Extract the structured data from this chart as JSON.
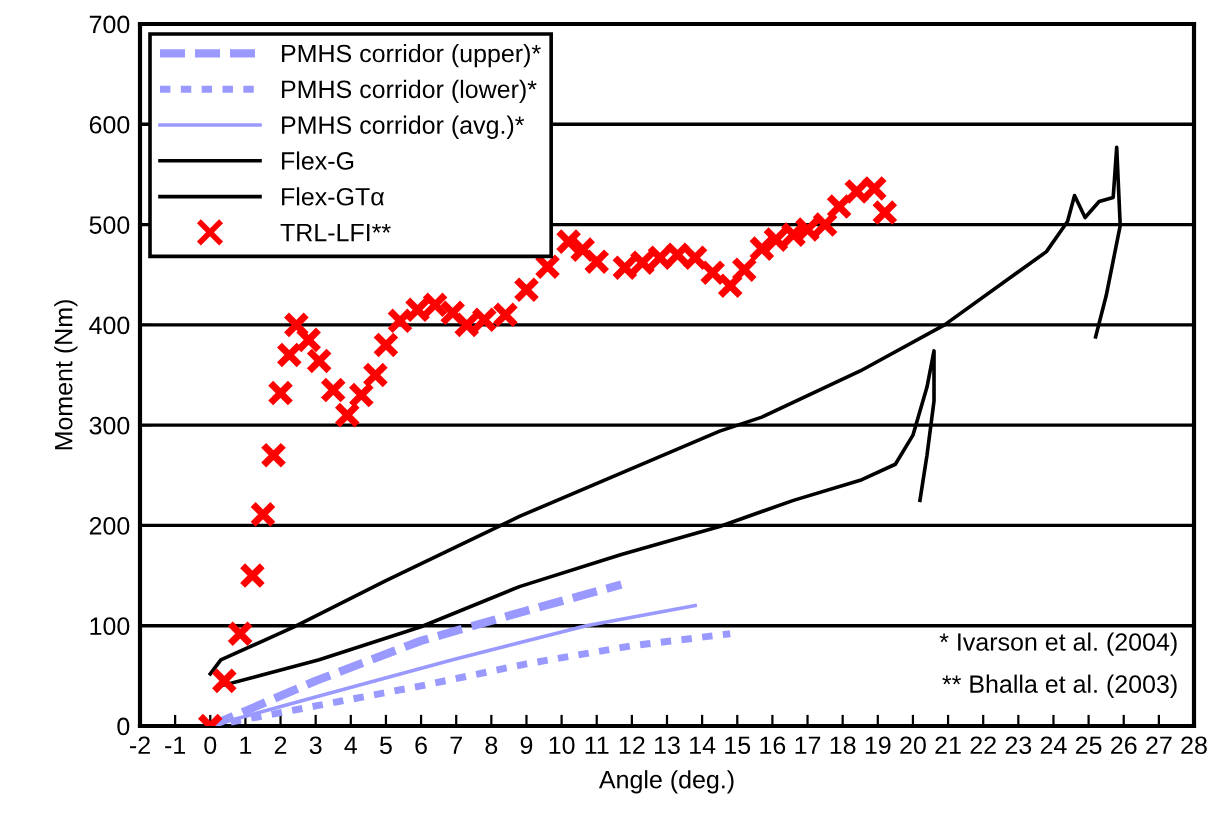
{
  "chart_data": {
    "type": "line",
    "xlabel": "Angle (deg.)",
    "ylabel": "Moment (Nm)",
    "xlim": [
      -2,
      28
    ],
    "xticks": [
      -2,
      -1,
      0,
      1,
      2,
      3,
      4,
      5,
      6,
      7,
      8,
      9,
      10,
      11,
      12,
      13,
      14,
      15,
      16,
      17,
      18,
      19,
      20,
      21,
      22,
      23,
      24,
      25,
      26,
      27,
      28
    ],
    "ylim": [
      0,
      700
    ],
    "yticks": [
      0,
      100,
      200,
      300,
      400,
      500,
      600,
      700
    ],
    "grid": "y",
    "legend": "top left",
    "annotations": [
      "* Ivarson et al. (2004)",
      "** Bhalla et al. (2003)"
    ],
    "series": [
      {
        "name": "PMHS corridor (upper)*",
        "color": "#9999ff",
        "line_style": "dashed",
        "marker": "none",
        "x": [
          0,
          3,
          6,
          9,
          11.7
        ],
        "values": [
          0,
          45,
          85,
          115,
          141
        ]
      },
      {
        "name": "PMHS corridor (lower)*",
        "color": "#9999ff",
        "line_style": "dotted",
        "marker": "none",
        "x": [
          0,
          3,
          6,
          9,
          12,
          14.8
        ],
        "values": [
          0,
          20,
          40,
          62,
          80,
          92
        ]
      },
      {
        "name": "PMHS corridor (avg.)*",
        "color": "#9999ff",
        "line_style": "solid",
        "marker": "none",
        "x": [
          0,
          3.1,
          6.9,
          10.7,
          13.8
        ],
        "values": [
          0,
          30,
          66,
          100,
          120
        ]
      },
      {
        "name": "Flex-G",
        "color": "#000000",
        "line_style": "solid",
        "marker": "none",
        "x": [
          0,
          0.3,
          2.4,
          5.0,
          8.8,
          14.5,
          15.7,
          18.5,
          20.9,
          23.8,
          24.4,
          24.6,
          24.9,
          25.3,
          25.7,
          25.8,
          25.9,
          25.5,
          25.2
        ],
        "values": [
          52,
          66,
          99,
          145,
          209,
          294,
          308,
          354,
          400,
          473,
          503,
          529,
          507,
          523,
          527,
          577,
          499,
          429,
          388
        ]
      },
      {
        "name": "Flex-GTα",
        "color": "#000000",
        "line_style": "solid",
        "marker": "none",
        "x": [
          0.3,
          3.1,
          6.0,
          8.8,
          11.7,
          14.5,
          16.6,
          18.5,
          19.5,
          20.0,
          20.4,
          20.6,
          20.6,
          20.4,
          20.2
        ],
        "values": [
          40,
          66,
          99,
          139,
          171,
          199,
          225,
          245,
          261,
          290,
          338,
          374,
          324,
          270,
          225
        ]
      },
      {
        "name": "TRL-LFI**",
        "type": "scatter",
        "color": "#ff0000",
        "marker": "cross",
        "x": [
          0,
          0.4,
          0.85,
          1.2,
          1.5,
          1.8,
          2.0,
          2.25,
          2.45,
          2.8,
          3.1,
          3.5,
          3.9,
          4.3,
          4.7,
          5.0,
          5.4,
          5.9,
          6.4,
          6.9,
          7.3,
          7.8,
          8.4,
          9.0,
          9.6,
          10.2,
          10.6,
          11.0,
          11.8,
          12.3,
          12.8,
          13.3,
          13.8,
          14.3,
          14.8,
          15.2,
          15.7,
          16.1,
          16.6,
          17.0,
          17.5,
          17.9,
          18.4,
          18.9,
          19.2
        ],
        "values": [
          0,
          45,
          92,
          150,
          211,
          270,
          332,
          370,
          400,
          385,
          364,
          335,
          310,
          330,
          350,
          380,
          404,
          415,
          420,
          412,
          400,
          405,
          410,
          435,
          458,
          483,
          475,
          463,
          457,
          462,
          467,
          470,
          467,
          452,
          439,
          455,
          476,
          485,
          490,
          495,
          500,
          518,
          533,
          536,
          512
        ]
      }
    ]
  }
}
